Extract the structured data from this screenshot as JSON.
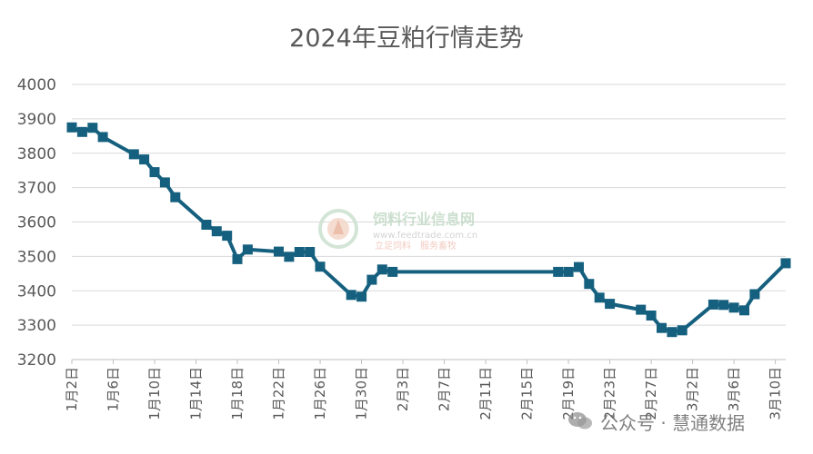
{
  "chart_data": {
    "type": "line",
    "title": "2024年豆粕行情走势",
    "xlabel": "",
    "ylabel": "",
    "ylim": [
      3200,
      4000
    ],
    "yticks": [
      3200,
      3300,
      3400,
      3500,
      3600,
      3700,
      3800,
      3900,
      4000
    ],
    "xlim": [
      "2024-01-02",
      "2024-03-11"
    ],
    "xtick_labels": [
      "1月2日",
      "1月6日",
      "1月10日",
      "1月14日",
      "1月18日",
      "1月22日",
      "1月26日",
      "1月30日",
      "2月3日",
      "2月7日",
      "2月11日",
      "2月15日",
      "2月19日",
      "2月23日",
      "2月27日",
      "3月2日",
      "3月6日",
      "3月10日"
    ],
    "xtick_dates": [
      "2024-01-02",
      "2024-01-06",
      "2024-01-10",
      "2024-01-14",
      "2024-01-18",
      "2024-01-22",
      "2024-01-26",
      "2024-01-30",
      "2024-02-03",
      "2024-02-07",
      "2024-02-11",
      "2024-02-15",
      "2024-02-19",
      "2024-02-23",
      "2024-02-27",
      "2024-03-02",
      "2024-03-06",
      "2024-03-10"
    ],
    "grid": true,
    "legend": "none",
    "color": "#16607f",
    "marker": "square",
    "series": [
      {
        "name": "",
        "x": [
          "2024-01-02",
          "2024-01-03",
          "2024-01-04",
          "2024-01-05",
          "2024-01-08",
          "2024-01-09",
          "2024-01-10",
          "2024-01-11",
          "2024-01-12",
          "2024-01-15",
          "2024-01-16",
          "2024-01-17",
          "2024-01-18",
          "2024-01-19",
          "2024-01-22",
          "2024-01-23",
          "2024-01-24",
          "2024-01-25",
          "2024-01-26",
          "2024-01-29",
          "2024-01-30",
          "2024-01-31",
          "2024-02-01",
          "2024-02-02",
          "2024-02-18",
          "2024-02-19",
          "2024-02-20",
          "2024-02-21",
          "2024-02-22",
          "2024-02-23",
          "2024-02-26",
          "2024-02-27",
          "2024-02-28",
          "2024-02-29",
          "2024-03-01",
          "2024-03-04",
          "2024-03-05",
          "2024-03-06",
          "2024-03-07",
          "2024-03-08",
          "2024-03-11"
        ],
        "values": [
          3875,
          3862,
          3874,
          3847,
          3797,
          3782,
          3745,
          3715,
          3672,
          3592,
          3573,
          3560,
          3492,
          3520,
          3514,
          3499,
          3513,
          3513,
          3470,
          3388,
          3383,
          3432,
          3462,
          3455,
          3455,
          3455,
          3469,
          3420,
          3380,
          3362,
          3345,
          3328,
          3292,
          3280,
          3285,
          3360,
          3359,
          3351,
          3343,
          3390,
          3480
        ]
      }
    ]
  },
  "watermark": {
    "title": "饲料行业信息网",
    "url": "www.feedtrade.com.cn",
    "slogan": "立足饲料　服务畜牧"
  },
  "credit": {
    "text": "公众号 · 慧通数据"
  }
}
